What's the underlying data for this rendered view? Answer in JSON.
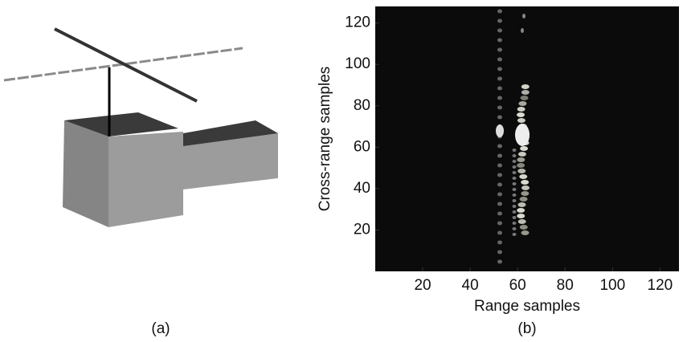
{
  "panel_a": {
    "label": "(a)"
  },
  "chart_data": {
    "type": "image",
    "label": "(b)",
    "xlabel": "Range samples",
    "ylabel": "Cross-range samples",
    "xlim": [
      0,
      128
    ],
    "ylim": [
      0,
      128
    ],
    "xticks": [
      20,
      40,
      60,
      80,
      100,
      120
    ],
    "yticks": [
      20,
      40,
      60,
      80,
      100,
      120
    ]
  }
}
